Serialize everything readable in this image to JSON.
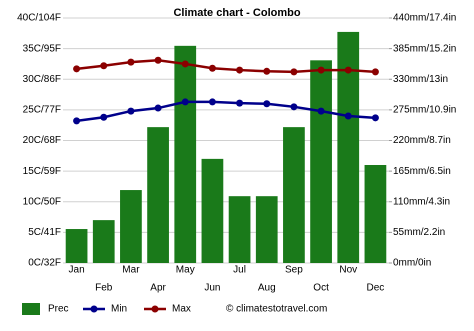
{
  "chart_data": {
    "type": "combo",
    "title": "Climate chart - Colombo",
    "categories": [
      "Jan",
      "Feb",
      "Mar",
      "Apr",
      "May",
      "Jun",
      "Jul",
      "Aug",
      "Sep",
      "Oct",
      "Nov",
      "Dec"
    ],
    "series": [
      {
        "name": "Prec",
        "type": "bar",
        "axis": "y2",
        "color": "#1a7a1a",
        "values": [
          61,
          77,
          131,
          244,
          390,
          187,
          120,
          120,
          244,
          364,
          415,
          176
        ]
      },
      {
        "name": "Min",
        "type": "line",
        "color": "#00008b",
        "values": [
          23.2,
          23.8,
          24.8,
          25.3,
          26.3,
          26.3,
          26.1,
          26.0,
          25.5,
          24.8,
          24.0,
          23.7
        ]
      },
      {
        "name": "Max",
        "type": "line",
        "color": "#8b0000",
        "values": [
          31.7,
          32.2,
          32.8,
          33.1,
          32.5,
          31.8,
          31.5,
          31.3,
          31.2,
          31.5,
          31.5,
          31.2
        ]
      }
    ],
    "ylim": [
      0,
      40
    ],
    "yticks": [
      {
        "value": 0,
        "label": "0C/32F"
      },
      {
        "value": 5,
        "label": "5C/41F"
      },
      {
        "value": 10,
        "label": "10C/50F"
      },
      {
        "value": 15,
        "label": "15C/59F"
      },
      {
        "value": 20,
        "label": "20C/68F"
      },
      {
        "value": 25,
        "label": "25C/77F"
      },
      {
        "value": 30,
        "label": "30C/86F"
      },
      {
        "value": 35,
        "label": "35C/95F"
      },
      {
        "value": 40,
        "label": "40C/104F"
      }
    ],
    "y2lim": [
      0,
      440
    ],
    "y2ticks": [
      {
        "value": 0,
        "label": "0mm/0in"
      },
      {
        "value": 55,
        "label": "55mm/2.2in"
      },
      {
        "value": 110,
        "label": "110mm/4.3in"
      },
      {
        "value": 165,
        "label": "165mm/6.5in"
      },
      {
        "value": 220,
        "label": "220mm/8.7in"
      },
      {
        "value": 275,
        "label": "275mm/10.9in"
      },
      {
        "value": 330,
        "label": "330mm/13in"
      },
      {
        "value": 385,
        "label": "385mm/15.2in"
      },
      {
        "value": 440,
        "label": "440mm/17.4in"
      }
    ],
    "grid": true,
    "legend": "bottom",
    "source": "© climatestotravel.com"
  }
}
